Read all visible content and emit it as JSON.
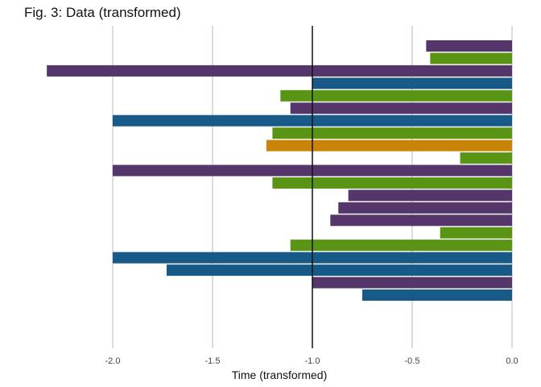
{
  "chart_data": {
    "type": "bar",
    "orientation": "horizontal",
    "title": "Fig. 3: Data (transformed)",
    "xlabel": "Time (transformed)",
    "ylabel": "",
    "xlim": [
      -2.4,
      0.0
    ],
    "xticks": [
      -2.0,
      -1.5,
      -1.0,
      -0.5,
      0.0
    ],
    "xtick_labels": [
      "-2.0",
      "-1.5",
      "-1.0",
      "-0.5",
      "0.0"
    ],
    "reference_line": -1.0,
    "grid": "vertical major only",
    "legend": "none",
    "colors": {
      "purple": "#55366a",
      "green": "#5a9414",
      "blue": "#175a88",
      "orange": "#c98407",
      "grid": "#b8b8b8",
      "reference": "#111111"
    },
    "bars": [
      {
        "value": -0.43,
        "color": "purple"
      },
      {
        "value": -0.41,
        "color": "green"
      },
      {
        "value": -2.33,
        "color": "purple"
      },
      {
        "value": -1.0,
        "color": "blue"
      },
      {
        "value": -1.16,
        "color": "green"
      },
      {
        "value": -1.11,
        "color": "purple"
      },
      {
        "value": -2.0,
        "color": "blue"
      },
      {
        "value": -1.2,
        "color": "green"
      },
      {
        "value": -1.23,
        "color": "orange"
      },
      {
        "value": -0.26,
        "color": "green"
      },
      {
        "value": -2.0,
        "color": "purple"
      },
      {
        "value": -1.2,
        "color": "green"
      },
      {
        "value": -0.82,
        "color": "purple"
      },
      {
        "value": -0.87,
        "color": "purple"
      },
      {
        "value": -0.91,
        "color": "purple"
      },
      {
        "value": -0.36,
        "color": "green"
      },
      {
        "value": -1.11,
        "color": "green"
      },
      {
        "value": -2.0,
        "color": "blue"
      },
      {
        "value": -1.73,
        "color": "blue"
      },
      {
        "value": -1.0,
        "color": "purple"
      },
      {
        "value": -0.75,
        "color": "blue"
      }
    ]
  }
}
